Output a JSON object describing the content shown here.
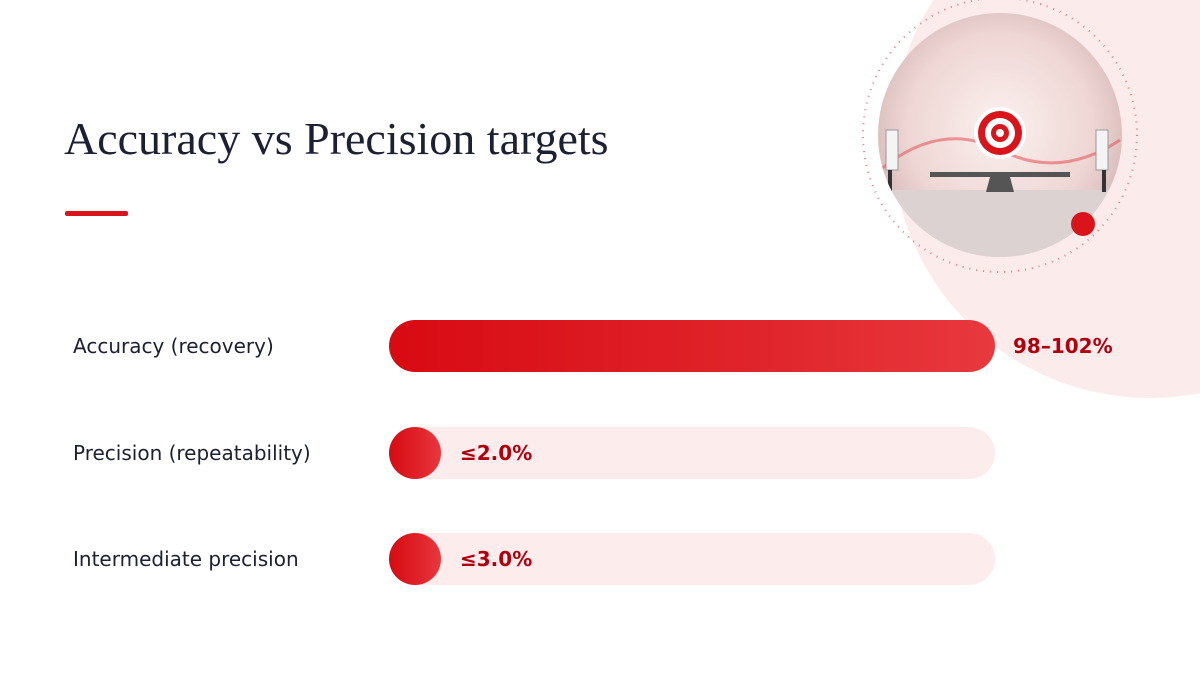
{
  "header": {
    "title": "Accuracy vs Precision targets"
  },
  "rows": [
    {
      "label": "Accuracy (recovery)",
      "value": "98–102%"
    },
    {
      "label": "Precision (repeatability)",
      "value": "≤2.0%"
    },
    {
      "label": "Intermediate precision",
      "value": "≤3.0%"
    }
  ]
}
